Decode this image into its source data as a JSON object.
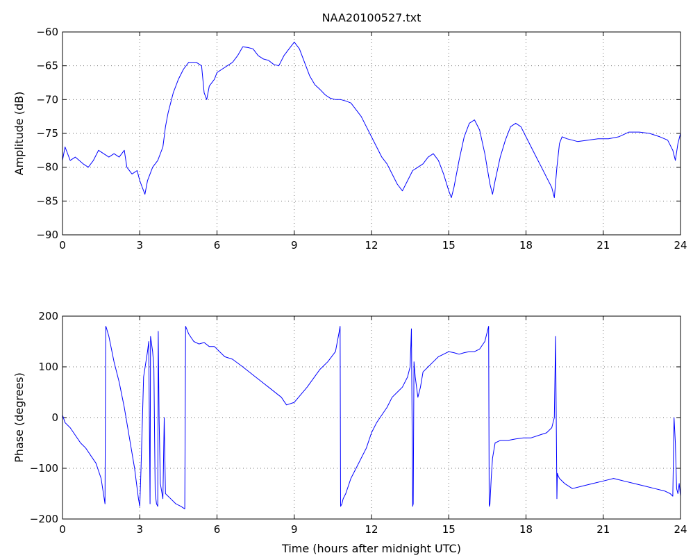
{
  "chart_data": [
    {
      "type": "line",
      "title": "NAA20100527.txt",
      "xlabel": "",
      "ylabel": "Amplitude (dB)",
      "xlim": [
        0,
        24
      ],
      "ylim": [
        -90,
        -60
      ],
      "xticks": [
        0,
        3,
        6,
        9,
        12,
        15,
        18,
        21,
        24
      ],
      "yticks": [
        -90,
        -85,
        -80,
        -75,
        -70,
        -65,
        -60
      ],
      "grid": true,
      "color": "#0000ff",
      "series": [
        {
          "x": [
            0,
            0.1,
            0.3,
            0.5,
            0.8,
            1.0,
            1.2,
            1.4,
            1.6,
            1.8,
            2.0,
            2.2,
            2.4,
            2.5,
            2.7,
            2.9,
            3.0,
            3.1,
            3.2,
            3.3,
            3.5,
            3.7,
            3.9,
            4.0,
            4.1,
            4.3,
            4.5,
            4.7,
            4.9,
            5.0,
            5.2,
            5.4,
            5.5,
            5.6,
            5.7,
            5.9,
            6.0,
            6.2,
            6.4,
            6.6,
            6.8,
            7.0,
            7.2,
            7.4,
            7.6,
            7.8,
            8.0,
            8.2,
            8.4,
            8.6,
            8.8,
            9.0,
            9.2,
            9.4,
            9.6,
            9.8,
            10.0,
            10.2,
            10.4,
            10.6,
            10.8,
            11.0,
            11.2,
            11.4,
            11.6,
            11.8,
            12.0,
            12.2,
            12.4,
            12.6,
            12.8,
            13.0,
            13.2,
            13.4,
            13.6,
            13.8,
            14.0,
            14.2,
            14.4,
            14.6,
            14.8,
            15.0,
            15.1,
            15.2,
            15.4,
            15.6,
            15.8,
            16.0,
            16.2,
            16.4,
            16.6,
            16.7,
            16.8,
            17.0,
            17.2,
            17.4,
            17.6,
            17.8,
            18.0,
            18.2,
            18.4,
            18.6,
            18.8,
            19.0,
            19.1,
            19.2,
            19.3,
            19.4,
            19.6,
            19.8,
            20.0,
            20.4,
            20.8,
            21.2,
            21.6,
            22.0,
            22.4,
            22.8,
            23.2,
            23.5,
            23.7,
            23.8,
            23.9,
            24.0
          ],
          "values": [
            -79,
            -77,
            -79,
            -78.5,
            -79.5,
            -80,
            -79,
            -77.5,
            -78,
            -78.5,
            -78,
            -78.5,
            -77.5,
            -80,
            -81,
            -80.5,
            -82,
            -83,
            -84,
            -82,
            -80,
            -79,
            -77,
            -74,
            -72,
            -69,
            -67,
            -65.5,
            -64.5,
            -64.5,
            -64.5,
            -65,
            -69,
            -70,
            -68,
            -67,
            -66,
            -65.5,
            -65,
            -64.5,
            -63.5,
            -62.2,
            -62.3,
            -62.5,
            -63.5,
            -64,
            -64.2,
            -64.8,
            -65,
            -63.5,
            -62.5,
            -61.5,
            -62.5,
            -64.5,
            -66.5,
            -67.8,
            -68.5,
            -69.3,
            -69.8,
            -70,
            -70,
            -70.2,
            -70.5,
            -71.5,
            -72.5,
            -74,
            -75.5,
            -77,
            -78.5,
            -79.5,
            -81,
            -82.5,
            -83.5,
            -82,
            -80.5,
            -80,
            -79.5,
            -78.5,
            -78,
            -79,
            -81,
            -83.5,
            -84.5,
            -83,
            -79,
            -75.5,
            -73.5,
            -73,
            -74.5,
            -78,
            -82.5,
            -84,
            -82,
            -78.5,
            -76,
            -74,
            -73.5,
            -74,
            -75.5,
            -77,
            -78.5,
            -80,
            -81.5,
            -83,
            -84.5,
            -80,
            -76.5,
            -75.5,
            -75.8,
            -76,
            -76.2,
            -76,
            -75.8,
            -75.8,
            -75.5,
            -74.8,
            -74.8,
            -75,
            -75.5,
            -76,
            -77.5,
            -79,
            -76.5,
            -75
          ]
        }
      ]
    },
    {
      "type": "line",
      "title": "",
      "xlabel": "Time (hours after midnight UTC)",
      "ylabel": "Phase (degrees)",
      "xlim": [
        0,
        24
      ],
      "ylim": [
        -200,
        200
      ],
      "xticks": [
        0,
        3,
        6,
        9,
        12,
        15,
        18,
        21,
        24
      ],
      "yticks": [
        -200,
        -100,
        0,
        100,
        200
      ],
      "grid": true,
      "color": "#0000ff",
      "series": [
        {
          "x": [
            0,
            0.1,
            0.3,
            0.5,
            0.7,
            0.9,
            1.1,
            1.3,
            1.5,
            1.65,
            1.68,
            1.7,
            1.8,
            2.0,
            2.2,
            2.4,
            2.6,
            2.8,
            2.95,
            3.0,
            3.05,
            3.15,
            3.3,
            3.35,
            3.4,
            3.42,
            3.5,
            3.55,
            3.6,
            3.65,
            3.7,
            3.72,
            3.75,
            3.8,
            3.9,
            3.95,
            4.0,
            4.2,
            4.4,
            4.6,
            4.75,
            4.78,
            4.9,
            5.1,
            5.3,
            5.5,
            5.7,
            5.9,
            6.1,
            6.3,
            6.6,
            7.0,
            7.5,
            8.0,
            8.5,
            8.7,
            9.0,
            9.5,
            10.0,
            10.3,
            10.6,
            10.75,
            10.78,
            10.8,
            10.85,
            10.9,
            11.0,
            11.2,
            11.4,
            11.6,
            11.8,
            12.0,
            12.2,
            12.4,
            12.6,
            12.8,
            13.0,
            13.2,
            13.4,
            13.5,
            13.55,
            13.6,
            13.62,
            13.65,
            13.7,
            13.8,
            13.9,
            14.0,
            14.2,
            14.4,
            14.6,
            14.8,
            15.0,
            15.2,
            15.4,
            15.6,
            15.8,
            16.0,
            16.2,
            16.4,
            16.5,
            16.55,
            16.57,
            16.6,
            16.65,
            16.7,
            16.8,
            17.0,
            17.3,
            17.6,
            17.9,
            18.2,
            18.5,
            18.8,
            19.0,
            19.1,
            19.15,
            19.2,
            19.22,
            19.25,
            19.3,
            19.5,
            19.8,
            20.2,
            20.6,
            21.0,
            21.4,
            21.8,
            22.2,
            22.6,
            23.0,
            23.4,
            23.6,
            23.7,
            23.75,
            23.8,
            23.85,
            23.9,
            23.95,
            24.0
          ],
          "values": [
            5,
            -10,
            -20,
            -35,
            -50,
            -60,
            -75,
            -90,
            -120,
            -170,
            180,
            178,
            160,
            110,
            70,
            20,
            -40,
            -100,
            -160,
            -175,
            -100,
            80,
            130,
            150,
            -170,
            160,
            130,
            100,
            -150,
            -170,
            -175,
            170,
            0,
            -130,
            -160,
            0,
            -150,
            -160,
            -170,
            -175,
            -180,
            180,
            165,
            150,
            145,
            148,
            140,
            140,
            130,
            120,
            115,
            100,
            80,
            60,
            40,
            25,
            30,
            60,
            95,
            110,
            130,
            170,
            180,
            -175,
            -170,
            -160,
            -150,
            -120,
            -100,
            -80,
            -60,
            -30,
            -10,
            5,
            20,
            40,
            50,
            60,
            80,
            100,
            175,
            -175,
            -170,
            110,
            80,
            40,
            60,
            90,
            100,
            110,
            120,
            125,
            130,
            128,
            125,
            128,
            130,
            130,
            135,
            150,
            170,
            180,
            -175,
            -170,
            -120,
            -80,
            -50,
            -45,
            -45,
            -42,
            -40,
            -40,
            -35,
            -30,
            -20,
            0,
            160,
            -160,
            -110,
            -115,
            -120,
            -130,
            -140,
            -135,
            -130,
            -125,
            -120,
            -125,
            -130,
            -135,
            -140,
            -145,
            -150,
            -155,
            0,
            -50,
            -140,
            -150,
            -130,
            -155
          ]
        }
      ]
    }
  ]
}
